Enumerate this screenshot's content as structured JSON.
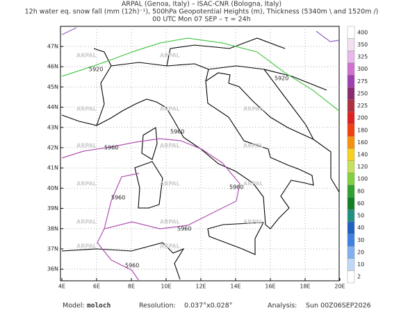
{
  "header": {
    "line1": "ARPAL (Genoa, Italy)  –  ISAC-CNR (Bologna, Italy)",
    "line2": "12h water eq. snow fall (mm (12h)⁻¹), 500hPa Geopotential Heights (m), Thickness (5340m \\ and 1520m /)",
    "line3": "00 UTC Mon 07 SEP  –  τ = 24h"
  },
  "map": {
    "lon_labels": [
      "4E",
      "6E",
      "8E",
      "10E",
      "12E",
      "14E",
      "16E",
      "18E",
      "20E"
    ],
    "lat_labels": [
      "47N",
      "46N",
      "45N",
      "44N",
      "43N",
      "42N",
      "41N",
      "40N",
      "39N",
      "38N",
      "37N",
      "36N"
    ],
    "contour_labels": {
      "green": "5920",
      "purple": "5960"
    },
    "watermark": "ARPAL"
  },
  "colorbar": {
    "labels": [
      "400",
      "350",
      "325",
      "300",
      "275",
      "250",
      "225",
      "200",
      "180",
      "160",
      "140",
      "120",
      "100",
      "80",
      "60",
      "50",
      "40",
      "30",
      "20",
      "10",
      "2"
    ],
    "colors": [
      "#ffffff",
      "#f4e0f0",
      "#e8b8e8",
      "#d070d0",
      "#a040b0",
      "#8a2a70",
      "#b03040",
      "#e02020",
      "#f04010",
      "#f89010",
      "#f8d020",
      "#c8e060",
      "#80d040",
      "#30a030",
      "#108020",
      "#209080",
      "#2060c0",
      "#4080e0",
      "#80b0f0",
      "#c0d8f8",
      "#ffffff"
    ]
  },
  "footer": {
    "model_label": "Model:",
    "model": "moloch",
    "resolution_label": "Resolution:",
    "resolution": "0.037°x0.028°",
    "analysis_label": "Analysis:",
    "analysis": "Sun 00Z06SEP2026"
  }
}
